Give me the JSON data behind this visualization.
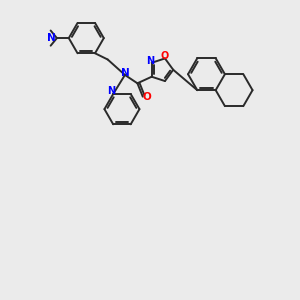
{
  "bg_color": "#ebebeb",
  "bond_color": "#2a2a2a",
  "nitrogen_color": "#0000ff",
  "oxygen_color": "#ff0000",
  "lw": 1.4,
  "fig_w": 3.0,
  "fig_h": 3.0,
  "dpi": 100,
  "xlim": [
    0,
    10
  ],
  "ylim": [
    0,
    10
  ],
  "hex_r": 0.62,
  "sat_hex_r": 0.62,
  "iso_r": 0.4
}
